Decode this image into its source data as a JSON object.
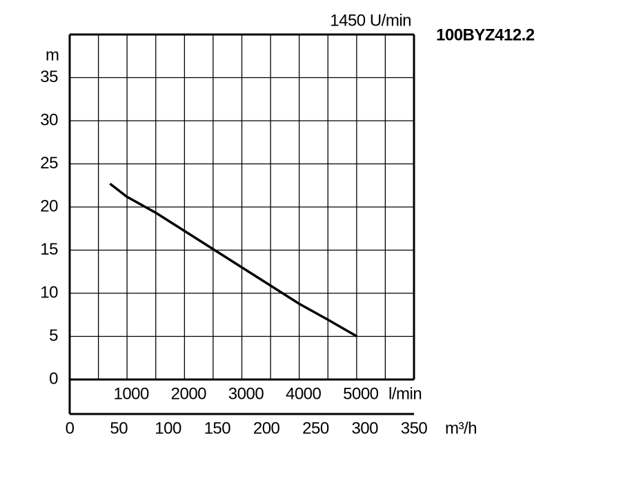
{
  "chart_data": {
    "type": "line",
    "title": "100BYZ412.2",
    "subtitle": "1450 U/min",
    "y_label": "m",
    "x_label": "m³/h",
    "x2_label": "l/min",
    "xlim": [
      0,
      350
    ],
    "xticks": [
      0,
      50,
      100,
      150,
      200,
      250,
      300,
      350
    ],
    "xgrid": [
      29.2,
      58.3,
      87.5,
      116.7,
      145.8,
      175,
      204.2,
      233.3,
      262.5,
      291.7,
      320.8
    ],
    "x2lim": [
      0,
      6000
    ],
    "x2ticks": [
      1000,
      2000,
      3000,
      4000,
      5000
    ],
    "ylim": [
      0,
      40
    ],
    "yticks": [
      0,
      5,
      10,
      15,
      20,
      25,
      30,
      35
    ],
    "grid": true,
    "series": [
      {
        "color": "#000000",
        "x": [
          41,
          58,
          88,
          117,
          146,
          175,
          204,
          233,
          263,
          292
        ],
        "values": [
          22.7,
          21.2,
          19.3,
          17.2,
          15.1,
          13.0,
          10.9,
          8.8,
          6.9,
          5.0
        ]
      }
    ]
  }
}
